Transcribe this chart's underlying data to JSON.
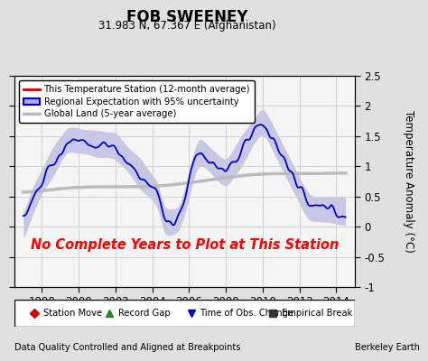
{
  "title": "FOB SWEENEY",
  "subtitle": "31.983 N, 67.367 E (Afghanistan)",
  "ylabel": "Temperature Anomaly (°C)",
  "xlabel_left": "Data Quality Controlled and Aligned at Breakpoints",
  "xlabel_right": "Berkeley Earth",
  "no_data_text": "No Complete Years to Plot at This Station",
  "xlim": [
    1996.5,
    2015.0
  ],
  "ylim": [
    -1.0,
    2.5
  ],
  "yticks": [
    -1.0,
    -0.5,
    0.0,
    0.5,
    1.0,
    1.5,
    2.0,
    2.5
  ],
  "ytick_labels": [
    "-1",
    "-0.5",
    "0",
    "0.5",
    "1",
    "1.5",
    "2",
    "2.5"
  ],
  "xticks": [
    1998,
    2000,
    2002,
    2004,
    2006,
    2008,
    2010,
    2012,
    2014
  ],
  "background_color": "#e0e0e0",
  "plot_bg_color": "#f5f5f5",
  "regional_fill_color": "#aaaadd",
  "regional_line_color": "#0000cc",
  "global_color": "#bbbbbb",
  "station_color": "#cc0000",
  "legend_items": [
    {
      "label": "This Temperature Station (12-month average)",
      "color": "#cc0000",
      "lw": 2
    },
    {
      "label": "Regional Expectation with 95% uncertainty",
      "color": "#0000cc",
      "fill": "#aaaadd"
    },
    {
      "label": "Global Land (5-year average)",
      "color": "#bbbbbb",
      "lw": 2
    }
  ],
  "bottom_legend": [
    {
      "marker": "D",
      "color": "#cc0000",
      "label": "Station Move"
    },
    {
      "marker": "^",
      "color": "#228822",
      "label": "Record Gap"
    },
    {
      "marker": "v",
      "color": "#0000cc",
      "label": "Time of Obs. Change"
    },
    {
      "marker": "s",
      "color": "#333333",
      "label": "Empirical Break"
    }
  ]
}
